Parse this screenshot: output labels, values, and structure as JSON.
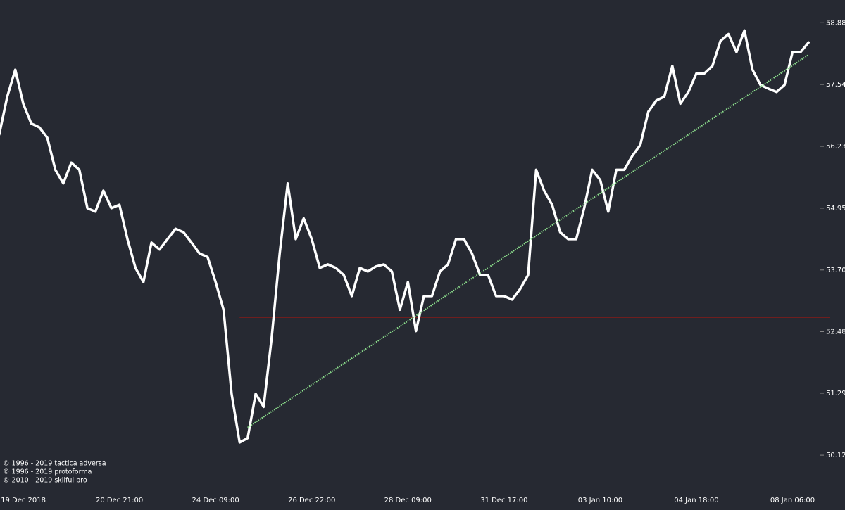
{
  "chart_data": {
    "type": "line",
    "log_scale": true,
    "grid": false,
    "background": "#262932",
    "categories": [
      null,
      null,
      null,
      "19 Dec 2018",
      null,
      null,
      null,
      null,
      null,
      null,
      null,
      null,
      null,
      null,
      null,
      "20 Dec 21:00",
      null,
      null,
      null,
      null,
      null,
      null,
      null,
      null,
      null,
      null,
      null,
      "24 Dec 09:00",
      null,
      null,
      null,
      null,
      null,
      null,
      null,
      null,
      null,
      null,
      null,
      "26 Dec 22:00",
      null,
      null,
      null,
      null,
      null,
      null,
      null,
      null,
      null,
      null,
      null,
      "28 Dec 09:00",
      null,
      null,
      null,
      null,
      null,
      null,
      null,
      null,
      null,
      null,
      null,
      "31 Dec 17:00",
      null,
      null,
      null,
      null,
      null,
      null,
      null,
      null,
      null,
      null,
      null,
      "03 Jan 10:00",
      null,
      null,
      null,
      null,
      null,
      null,
      null,
      null,
      null,
      null,
      null,
      "04 Jan 18:00",
      null,
      null,
      null,
      null,
      null,
      null,
      null,
      null,
      null,
      null,
      null,
      "08 Jan 06:00",
      null,
      null
    ],
    "series": [
      {
        "color": "#ffffff",
        "values": [
          56.48,
          57.28,
          57.86,
          57.13,
          56.71,
          56.63,
          56.41,
          55.74,
          55.46,
          55.89,
          55.74,
          54.95,
          54.88,
          55.31,
          54.95,
          55.02,
          54.32,
          53.74,
          53.46,
          54.25,
          54.11,
          54.32,
          54.53,
          54.46,
          54.25,
          54.03,
          53.96,
          53.46,
          52.91,
          51.28,
          50.36,
          50.44,
          51.28,
          51.03,
          52.36,
          54.03,
          55.46,
          54.32,
          54.74,
          54.32,
          53.74,
          53.81,
          53.74,
          53.6,
          53.18,
          53.74,
          53.67,
          53.77,
          53.81,
          53.67,
          52.91,
          53.46,
          52.49,
          53.18,
          53.18,
          53.67,
          53.81,
          54.32,
          54.32,
          54.03,
          53.6,
          53.6,
          53.18,
          53.18,
          53.11,
          53.32,
          53.6,
          55.74,
          55.31,
          55.02,
          54.46,
          54.32,
          54.32,
          54.95,
          55.74,
          55.53,
          54.88,
          55.74,
          55.74,
          56.03,
          56.26,
          56.96,
          57.2,
          57.28,
          57.94,
          57.13,
          57.38,
          57.78,
          57.78,
          57.94,
          58.48,
          58.63,
          58.24,
          58.71,
          57.86,
          57.53,
          57.45,
          57.38,
          57.53,
          58.24,
          58.24,
          58.45
        ]
      }
    ],
    "ylim": [
      49.43,
      59.38
    ],
    "yticks": [
      58.88,
      57.54,
      56.23,
      54.95,
      {
        "value": 53.7,
        "label": "53.70"
      },
      52.48,
      51.29,
      50.12
    ],
    "hline": {
      "value": 52.76,
      "x": [
        30,
        101
      ],
      "color": "#7a1c1c"
    },
    "trendline": {
      "x": [
        31,
        101
      ],
      "y": [
        50.64,
        58.18
      ],
      "color": "#8fe38f"
    },
    "notes": [
      "© 1996 - 2019 tactica adversa",
      "© 1996 - 2019 protoforma",
      "© 2010 - 2019 skilful pro"
    ]
  }
}
